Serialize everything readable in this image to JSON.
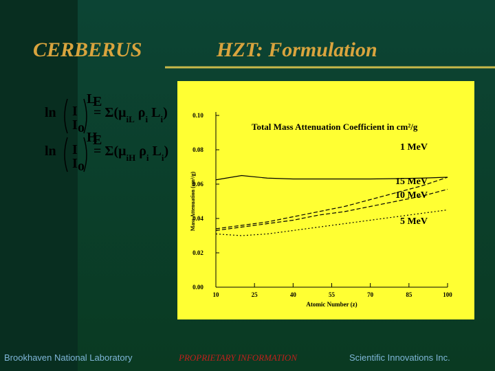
{
  "slide": {
    "left_title": "CERBERUS",
    "title": "HZT:  Formulation",
    "equations": [
      {
        "ln": "ln",
        "num": "I",
        "den": "I",
        "den_sub": "o",
        "exp": "L",
        "exp_sub": "E",
        "rhs": "= Σ(μ",
        "rhs_sub1": "iL",
        "rhs2": " ρ",
        "rhs_sub2": "i",
        "rhs3": " L",
        "rhs_sub3": "i",
        "rhs4": ")"
      },
      {
        "ln": "ln",
        "num": "I",
        "den": "I",
        "den_sub": "o",
        "exp": "H",
        "exp_sub": "E",
        "rhs": "= Σ(μ",
        "rhs_sub1": "iH",
        "rhs2": " ρ",
        "rhs_sub2": "i",
        "rhs3": " L",
        "rhs_sub3": "i",
        "rhs4": ")"
      }
    ],
    "footer_left": "Brookhaven National Laboratory",
    "footer_center": "PROPRIETARY INFORMATION",
    "footer_right": "Scientific Innovations Inc."
  },
  "chart_data": {
    "type": "line",
    "title": "Total Mass Attenuation Coefficient in cm²/g",
    "x_label": "Atomic Number (z)",
    "y_label": "Mass Attenuation (cm²/g)",
    "x": [
      10,
      20,
      30,
      40,
      50,
      60,
      70,
      80,
      90,
      100
    ],
    "series": [
      {
        "name": "1 MeV",
        "color": "#000000",
        "dash": "solid",
        "values": [
          0.0625,
          0.065,
          0.0635,
          0.063,
          0.063,
          0.063,
          0.063,
          0.0632,
          0.0635,
          0.064
        ]
      },
      {
        "name": "15 MeV",
        "color": "#000000",
        "dash": "dashed",
        "values": [
          0.034,
          0.036,
          0.038,
          0.041,
          0.044,
          0.047,
          0.051,
          0.055,
          0.059,
          0.064
        ]
      },
      {
        "name": "10 MeV",
        "color": "#000000",
        "dash": "dashed",
        "values": [
          0.033,
          0.035,
          0.037,
          0.039,
          0.042,
          0.044,
          0.047,
          0.05,
          0.053,
          0.057
        ]
      },
      {
        "name": "5 MeV",
        "color": "#000000",
        "dash": "dotted",
        "values": [
          0.031,
          0.03,
          0.031,
          0.033,
          0.035,
          0.037,
          0.039,
          0.041,
          0.043,
          0.045
        ]
      }
    ],
    "xlim": [
      10,
      100
    ],
    "xticks": [
      10,
      25,
      40,
      55,
      70,
      85,
      100
    ],
    "ylim": [
      0,
      0.1
    ],
    "yticks": [
      {
        "value": 0,
        "label": "0.00"
      },
      {
        "value": 0.02,
        "label": "0.02"
      },
      {
        "value": 0.04,
        "label": "0.04"
      },
      {
        "value": 0.06,
        "label": "0.06"
      },
      {
        "value": 0.08,
        "label": "0.08"
      },
      {
        "value": 0.1,
        "label": "0.10"
      }
    ],
    "background": "#ffff33"
  }
}
